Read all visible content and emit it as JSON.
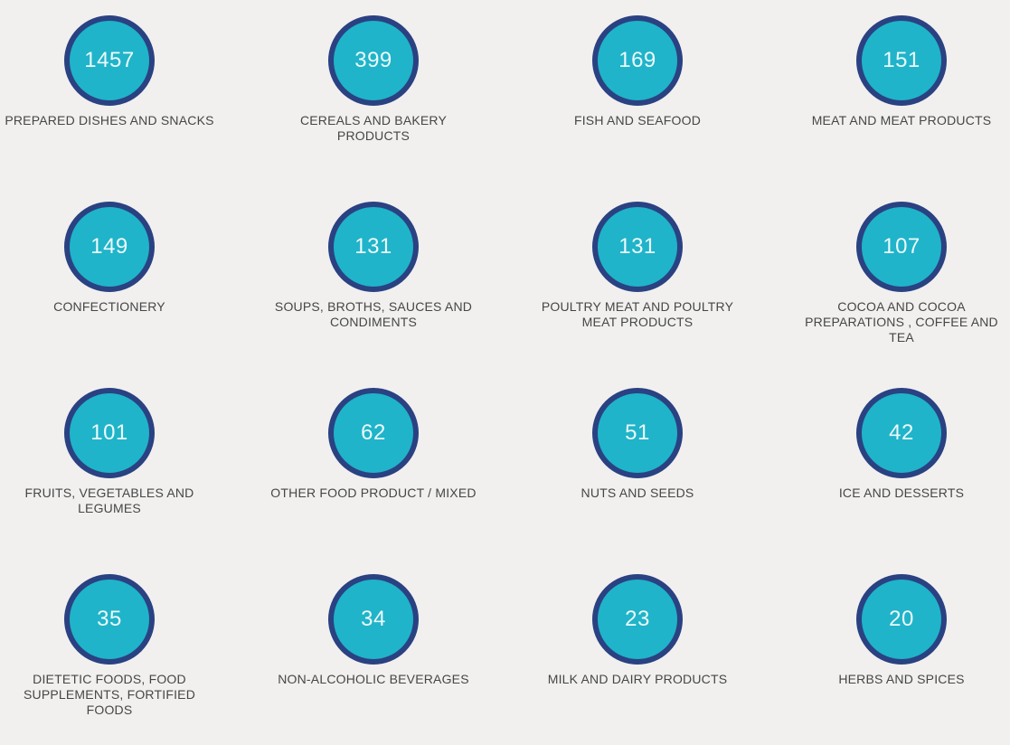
{
  "theme": {
    "page_bg": "#f1f0ef",
    "bubble_fill": "#1fb4c9",
    "bubble_border": "#2a4182",
    "value_color": "#edf9fb",
    "label_color": "#464646"
  },
  "items": [
    {
      "value": "1457",
      "label": "PREPARED DISHES AND SNACKS"
    },
    {
      "value": "399",
      "label": "CEREALS AND BAKERY PRODUCTS"
    },
    {
      "value": "169",
      "label": "FISH AND SEAFOOD"
    },
    {
      "value": "151",
      "label": "MEAT AND MEAT PRODUCTS"
    },
    {
      "value": "149",
      "label": "CONFECTIONERY"
    },
    {
      "value": "131",
      "label": "SOUPS, BROTHS, SAUCES AND CONDIMENTS"
    },
    {
      "value": "131",
      "label": "POULTRY MEAT AND POULTRY MEAT PRODUCTS"
    },
    {
      "value": "107",
      "label": "COCOA AND COCOA PREPARATIONS , COFFEE AND TEA"
    },
    {
      "value": "101",
      "label": "FRUITS, VEGETABLES AND LEGUMES"
    },
    {
      "value": "62",
      "label": "OTHER FOOD PRODUCT / MIXED"
    },
    {
      "value": "51",
      "label": "NUTS AND SEEDS"
    },
    {
      "value": "42",
      "label": "ICE AND DESSERTS"
    },
    {
      "value": "35",
      "label": "DIETETIC FOODS, FOOD SUPPLEMENTS, FORTIFIED FOODS"
    },
    {
      "value": "34",
      "label": "NON-ALCOHOLIC BEVERAGES"
    },
    {
      "value": "23",
      "label": "MILK AND DAIRY PRODUCTS"
    },
    {
      "value": "20",
      "label": "HERBS AND SPICES"
    }
  ],
  "chart_data": {
    "type": "table",
    "layout": "4x4 bubble grid, row-major, values descending",
    "legend": "off",
    "categories": [
      "PREPARED DISHES AND SNACKS",
      "CEREALS AND BAKERY PRODUCTS",
      "FISH AND SEAFOOD",
      "MEAT AND MEAT PRODUCTS",
      "CONFECTIONERY",
      "SOUPS, BROTHS, SAUCES AND CONDIMENTS",
      "POULTRY MEAT AND POULTRY MEAT PRODUCTS",
      "COCOA AND COCOA PREPARATIONS , COFFEE AND TEA",
      "FRUITS, VEGETABLES AND LEGUMES",
      "OTHER FOOD PRODUCT / MIXED",
      "NUTS AND SEEDS",
      "ICE AND DESSERTS",
      "DIETETIC FOODS, FOOD SUPPLEMENTS, FORTIFIED FOODS",
      "NON-ALCOHOLIC BEVERAGES",
      "MILK AND DAIRY PRODUCTS",
      "HERBS AND SPICES"
    ],
    "values": [
      1457,
      399,
      169,
      151,
      149,
      131,
      131,
      107,
      101,
      62,
      51,
      42,
      35,
      34,
      23,
      20
    ]
  }
}
